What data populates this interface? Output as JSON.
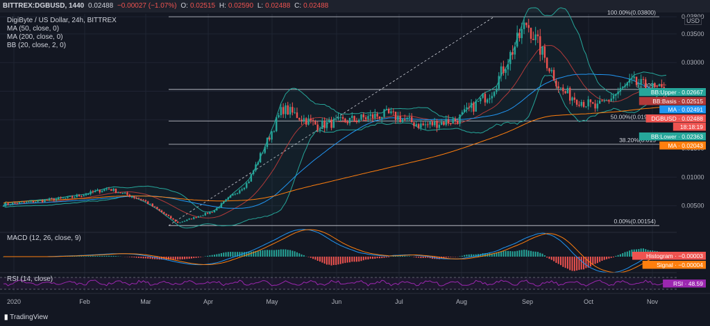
{
  "header": {
    "symbol": "BITTREX:DGBUSD, 1440",
    "last": "0.02488",
    "change": "−0.00027 (−1.07%)",
    "open_label": "O:",
    "open": "0.02515",
    "high_label": "H:",
    "high": "0.02590",
    "low_label": "L:",
    "low": "0.02488",
    "close_label": "C:",
    "close": "0.02488"
  },
  "legend": {
    "title": "DigiByte / US Dollar, 24h, BITTREX",
    "ma50": "MA (50, close, 0)",
    "ma200": "MA (200, close, 0)",
    "bb": "BB (20, close, 2, 0)",
    "macd": "MACD (12, 26, close, 9)",
    "rsi": "RSI (14, close)"
  },
  "currency": "USD",
  "branding": "TradingView",
  "colors": {
    "up": "#26a69a",
    "down": "#ef5350",
    "ma50": "#2196f3",
    "ma200": "#ff7f0e",
    "bb": "#26a69a",
    "bb_basis": "#b23a3a",
    "macd_line": "#2196f3",
    "signal_line": "#ff7f0e",
    "rsi": "#9c27b0"
  },
  "chart_data": [
    {
      "type": "candlestick",
      "title": "DigiByte / US Dollar, 24h, BITTREX",
      "x": [
        "2020",
        "Feb",
        "Mar",
        "Apr",
        "May",
        "Jun",
        "Jul",
        "Aug",
        "Sep",
        "Oct",
        "Nov"
      ],
      "price_axis_ticks": [
        "0.03800",
        "0.03500",
        "0.03000",
        "0.02500",
        "0.02000",
        "0.01500",
        "0.01000",
        "0.00500"
      ],
      "ylim": [
        0.0012,
        0.0385
      ],
      "close_series": [
        {
          "month": "2020",
          "value": 0.0052
        },
        {
          "month": "Jan-mid",
          "value": 0.0058
        },
        {
          "month": "Feb",
          "value": 0.0065
        },
        {
          "month": "Feb-mid",
          "value": 0.008
        },
        {
          "month": "Mar",
          "value": 0.006
        },
        {
          "month": "Mar-crash",
          "value": 0.002
        },
        {
          "month": "Apr",
          "value": 0.004
        },
        {
          "month": "Apr-end",
          "value": 0.009
        },
        {
          "month": "May",
          "value": 0.022
        },
        {
          "month": "May-mid",
          "value": 0.019
        },
        {
          "month": "Jun",
          "value": 0.02
        },
        {
          "month": "Jun-mid",
          "value": 0.021
        },
        {
          "month": "Jul",
          "value": 0.019
        },
        {
          "month": "Jul-mid",
          "value": 0.02
        },
        {
          "month": "Aug",
          "value": 0.025
        },
        {
          "month": "Aug-peak",
          "value": 0.037
        },
        {
          "month": "Sep",
          "value": 0.025
        },
        {
          "month": "Sep-mid",
          "value": 0.022
        },
        {
          "month": "Oct",
          "value": 0.0265
        },
        {
          "month": "Oct-now",
          "value": 0.02488
        }
      ],
      "fibonacci": [
        {
          "label": "100.00%(0.03800)",
          "value": 0.038
        },
        {
          "label": "61.80%",
          "value": 0.02531
        },
        {
          "label": "50.00%(0.01977)",
          "value": 0.01977
        },
        {
          "label": "38.20%(0.015",
          "value": 0.01573
        },
        {
          "label": "0.00%(0.00154)",
          "value": 0.00154
        }
      ],
      "price_tags": [
        {
          "label": "BB:Upper · 0.02667",
          "value": 0.02667,
          "color": "#26a69a"
        },
        {
          "label": "BB:Basis · 0.02515",
          "value": 0.02515,
          "color": "#b23a3a"
        },
        {
          "label": "MA · 0.02491",
          "value": 0.02491,
          "color": "#2196f3"
        },
        {
          "label": "DGBUSD · 0.02488",
          "value": 0.02488,
          "color": "#ef5350"
        },
        {
          "label": "18:18:19",
          "value": 0.02488,
          "color": "#ef5350"
        },
        {
          "label": "BB:Lower · 0.02363",
          "value": 0.02363,
          "color": "#26a69a"
        },
        {
          "label": "MA · 0.02043",
          "value": 0.02043,
          "color": "#ff7f0e"
        }
      ]
    },
    {
      "type": "bar",
      "title": "MACD (12, 26, close, 9)",
      "price_tags": [
        {
          "label": "Histogram · −0.00003",
          "value": -3e-05,
          "color": "#ef5350"
        },
        {
          "label": "Signal · −0.00004",
          "value": -4e-05,
          "color": "#ff7f0e"
        }
      ]
    },
    {
      "type": "line",
      "title": "RSI (14, close)",
      "price_tags": [
        {
          "label": "RSI · 48.59",
          "value": 48.59,
          "color": "#9c27b0"
        }
      ]
    }
  ]
}
